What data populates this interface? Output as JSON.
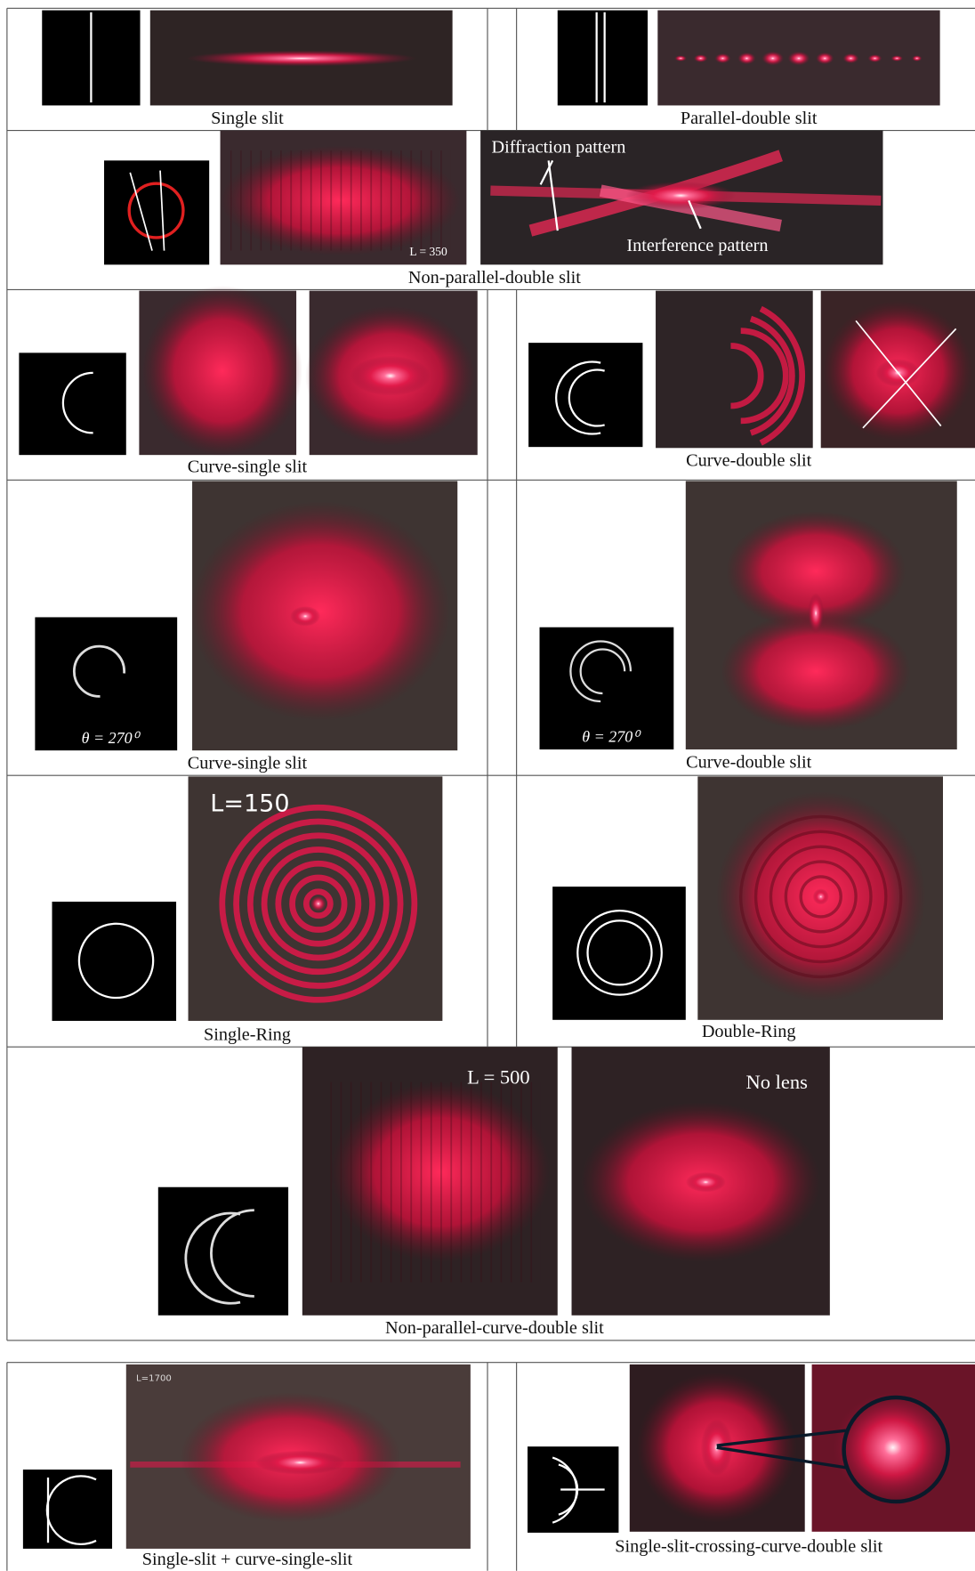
{
  "rows": [
    {
      "cells": [
        {
          "caption": "Single slit"
        },
        {
          "caption": "Parallel-double slit"
        }
      ]
    },
    {
      "cells": [
        {
          "caption": "Non-parallel-double slit",
          "annotations": [
            "L = 350",
            "Diffraction pattern",
            "Interference pattern"
          ]
        }
      ]
    },
    {
      "cells": [
        {
          "caption": "Curve-single slit"
        },
        {
          "caption": "Curve-double slit"
        }
      ]
    },
    {
      "cells": [
        {
          "caption": "Curve-single slit",
          "annotations": [
            "θ = 270⁰"
          ]
        },
        {
          "caption": "Curve-double slit",
          "annotations": [
            "θ = 270⁰"
          ]
        }
      ]
    },
    {
      "cells": [
        {
          "caption": "Single-Ring",
          "annotations": [
            "L=150"
          ]
        },
        {
          "caption": "Double-Ring"
        }
      ]
    },
    {
      "cells": [
        {
          "caption": "Non-parallel-curve-double slit",
          "annotations": [
            "L = 500",
            "No lens"
          ]
        }
      ]
    },
    {
      "cells": [
        {
          "caption": "Single-slit + curve-single-slit",
          "annotations": [
            "L=1700"
          ]
        },
        {
          "caption": "Single-slit-crossing-curve-double slit"
        }
      ]
    }
  ]
}
